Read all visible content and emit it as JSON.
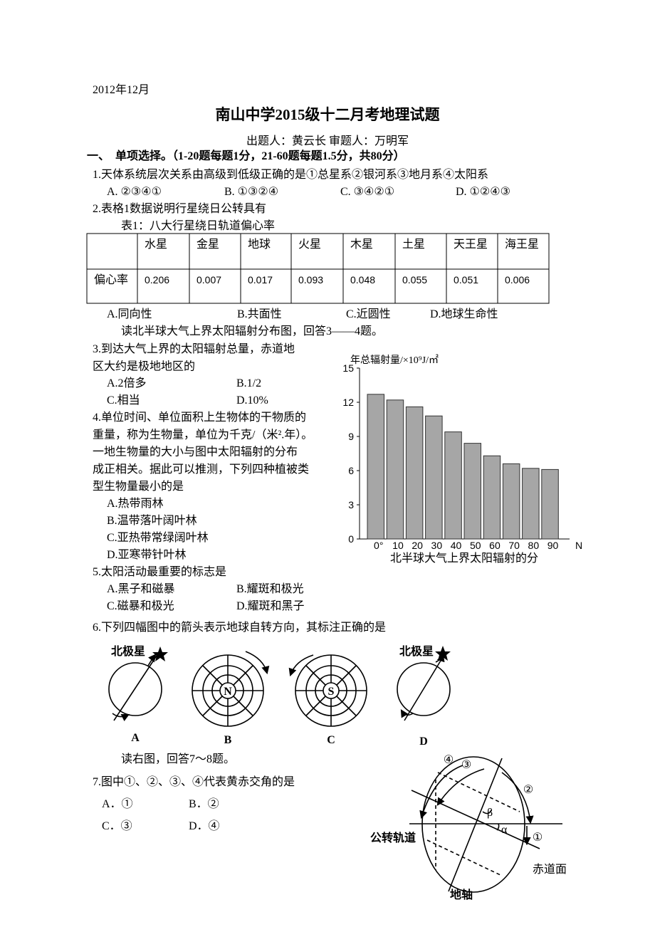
{
  "header": {
    "date": "2012年12月",
    "title": "南山中学2015级十二月考地理试题",
    "authors": "出题人：黄云长 审题人：万明军"
  },
  "section": "一、　单项选择。（1-20题每题1分，21-60题每题1.5分，共80分）",
  "readings": [
    "读北半球大气上界太阳辐射分布图，回答3——4题。",
    "读右图，回答7～8题。"
  ],
  "questions": [
    {
      "stem": [
        "1.天体系统层次关系由高级到低级正确的是①总星系②银河系③地月系④太阳系"
      ],
      "options": [
        "A. ②③④①",
        "B. ①③②④",
        "C. ③④②①",
        "D. ①②④③"
      ]
    },
    {
      "stem": [
        "2.表格1数据说明行星绕日公转具有"
      ],
      "options": [
        "A.同向性",
        "B.共面性",
        "C.近圆性",
        "D.地球生命性"
      ]
    },
    {
      "stem": [
        "3.到达大气上界的太阳辐射总量，赤道地",
        "区大约是极地地区的"
      ],
      "options": [
        "A.2倍多",
        "B.1/2",
        "C.相当",
        "D.10%"
      ]
    },
    {
      "stem": [
        "4.单位时间、单位面积上生物体的干物质的",
        "重量，称为生物量，单位为千克/（米².年）。",
        "一地生物量的大小与图中太阳辐射的分布",
        "成正相关。据此可以推测，下列四种植被类",
        "型生物量最小的是"
      ],
      "options": [
        "A.热带雨林",
        "B.温带落叶阔叶林",
        "C.亚热带常绿阔叶林",
        "D.亚寒带针叶林"
      ]
    },
    {
      "stem": [
        "5.太阳活动最重要的标志是"
      ],
      "options": [
        "A.黑子和磁暴",
        "B.耀斑和极光",
        "C.磁暴和极光",
        "D.耀斑和黑子"
      ]
    },
    {
      "stem": [
        "6.下列四幅图中的箭头表示地球自转方向，其标注正确的是"
      ],
      "options": []
    },
    {
      "stem": [
        "7.图中①、②、③、④代表黄赤交角的是"
      ],
      "options": [
        "A．①",
        "B．②",
        "C．③",
        "D．④"
      ]
    }
  ],
  "table": {
    "caption": "表1：八大行星绕日轨道偏心率",
    "rows": [
      [
        "",
        "水星",
        "金星",
        "地球",
        "火星",
        "木星",
        "土星",
        "天王星",
        "海王星"
      ],
      [
        "偏心率",
        "0.206",
        "0.007",
        "0.017",
        "0.093",
        "0.048",
        "0.055",
        "0.051",
        "0.006"
      ]
    ]
  },
  "chart_data": {
    "type": "bar",
    "title": "北半球大气上界太阳辐射的分",
    "ylabel": "年总辐射量/×10⁹J/㎡",
    "xlabel": "N",
    "categories": [
      "0°",
      "10",
      "20",
      "30",
      "40",
      "50",
      "60",
      "70",
      "80",
      "90"
    ],
    "values": [
      12.7,
      12.2,
      11.6,
      10.8,
      9.4,
      8.4,
      7.3,
      6.6,
      6.2,
      6.1
    ],
    "color": "#a6a6a6",
    "ylim": [
      0,
      15
    ],
    "yticks": [
      0,
      3,
      6,
      9,
      12,
      15
    ]
  },
  "rotation_figures": [
    {
      "label": "A",
      "star": "北极星"
    },
    {
      "label": "B",
      "pole": "N"
    },
    {
      "label": "C",
      "pole": "S"
    },
    {
      "label": "D",
      "star": "北极星"
    }
  ],
  "orbit_figure": {
    "arc_labels": [
      "④",
      "③",
      "②",
      "①"
    ],
    "beta": "β",
    "alpha": "α",
    "orbit": "公转轨道",
    "equator": "赤道面",
    "axis": "地轴"
  }
}
